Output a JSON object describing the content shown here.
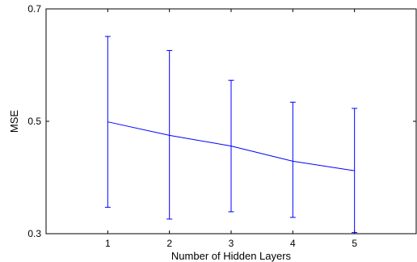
{
  "chart_data": {
    "type": "line",
    "xlabel": "Number of Hidden Layers",
    "ylabel": "MSE",
    "xlim": [
      0,
      6
    ],
    "ylim": [
      0.3,
      0.7
    ],
    "xticks": [
      "1",
      "2",
      "3",
      "4",
      "5"
    ],
    "yticks": [
      "0.3",
      "0.5",
      "0.7"
    ],
    "grid": false,
    "series": [
      {
        "x": [
          1,
          2,
          3,
          4,
          5
        ],
        "values": [
          0.499,
          0.475,
          0.456,
          0.429,
          0.412
        ],
        "error_upper": [
          0.651,
          0.626,
          0.573,
          0.534,
          0.523
        ],
        "error_lower": [
          0.347,
          0.326,
          0.339,
          0.329,
          0.302
        ],
        "color": "#0000ff"
      }
    ]
  }
}
